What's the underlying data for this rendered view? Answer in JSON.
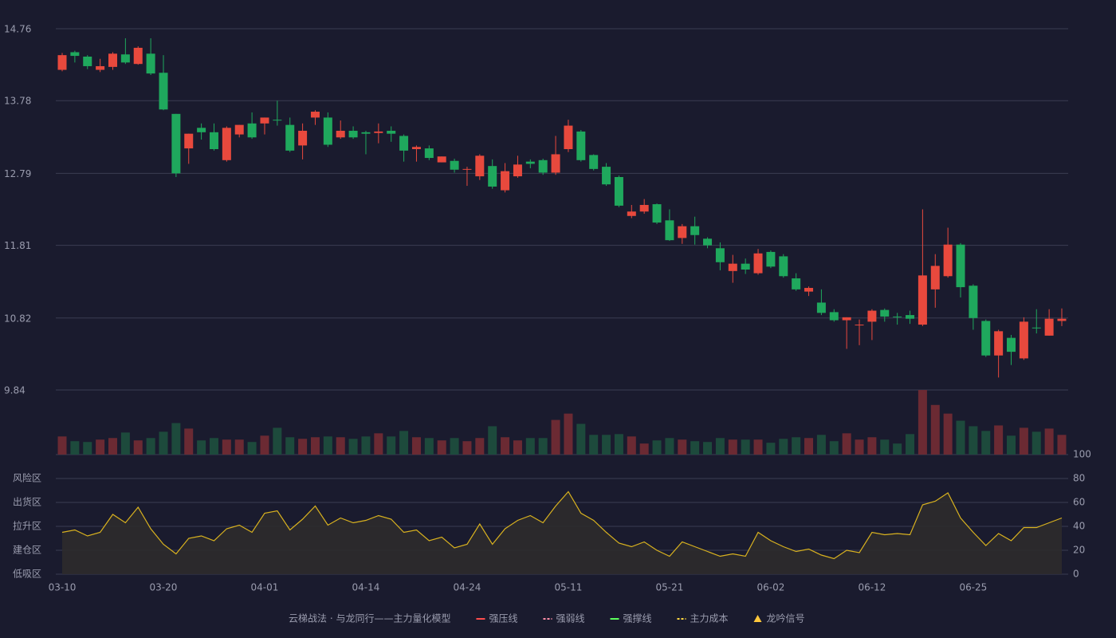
{
  "chart_data": {
    "type": "candlestick",
    "categories": [
      "03-10",
      null,
      null,
      null,
      null,
      null,
      null,
      null,
      "03-20",
      null,
      null,
      null,
      null,
      null,
      null,
      null,
      "04-01",
      null,
      null,
      null,
      null,
      null,
      null,
      null,
      "04-14",
      null,
      null,
      null,
      null,
      null,
      null,
      null,
      "04-24",
      null,
      null,
      null,
      null,
      null,
      null,
      null,
      "05-11",
      null,
      null,
      null,
      null,
      null,
      null,
      null,
      "05-21",
      null,
      null,
      null,
      null,
      null,
      null,
      null,
      "06-02",
      null,
      null,
      null,
      null,
      null,
      null,
      null,
      "06-12",
      null,
      null,
      null,
      null,
      null,
      null,
      null,
      "06-25",
      null,
      null,
      null,
      null,
      null,
      null,
      null
    ],
    "open": [
      14.2,
      14.44,
      14.38,
      14.2,
      14.24,
      14.41,
      14.28,
      14.42,
      14.16,
      13.6,
      13.13,
      13.41,
      13.35,
      12.97,
      13.32,
      13.47,
      13.47,
      13.52,
      13.45,
      13.17,
      13.55,
      13.55,
      13.28,
      13.37,
      13.35,
      13.34,
      13.37,
      13.3,
      13.12,
      13.13,
      12.94,
      12.96,
      12.84,
      12.75,
      12.89,
      12.56,
      12.75,
      12.95,
      12.97,
      12.8,
      13.12,
      13.36,
      13.04,
      12.88,
      12.74,
      12.21,
      12.27,
      12.37,
      12.15,
      11.91,
      12.07,
      11.9,
      11.77,
      11.46,
      11.56,
      11.43,
      11.72,
      11.66,
      11.36,
      11.18,
      11.03,
      10.9,
      10.79,
      10.72,
      10.77,
      10.93,
      10.84,
      10.86,
      10.73,
      11.21,
      11.39,
      11.82,
      11.26,
      10.78,
      10.31,
      10.55,
      10.27,
      10.69,
      10.58,
      10.78
    ],
    "high": [
      14.43,
      14.46,
      14.4,
      14.35,
      14.44,
      14.63,
      14.52,
      14.63,
      14.4,
      13.6,
      13.33,
      13.47,
      13.47,
      13.43,
      13.45,
      13.62,
      13.55,
      13.78,
      13.55,
      13.47,
      13.65,
      13.62,
      13.51,
      13.43,
      13.37,
      13.47,
      13.43,
      13.32,
      13.17,
      13.17,
      13.02,
      12.99,
      12.88,
      13.05,
      12.98,
      12.93,
      13.03,
      12.98,
      12.99,
      13.3,
      13.52,
      13.38,
      13.05,
      12.93,
      12.76,
      12.36,
      12.44,
      12.38,
      12.3,
      12.1,
      12.2,
      11.92,
      11.85,
      11.68,
      11.63,
      11.76,
      11.74,
      11.69,
      11.43,
      11.25,
      11.21,
      10.94,
      10.83,
      10.8,
      10.94,
      10.95,
      10.89,
      10.92,
      12.3,
      11.69,
      12.05,
      11.84,
      11.28,
      10.8,
      10.66,
      10.59,
      10.83,
      10.94,
      10.94,
      10.95
    ],
    "low": [
      14.18,
      14.3,
      14.21,
      14.17,
      14.2,
      14.28,
      14.27,
      14.13,
      13.65,
      12.74,
      12.92,
      13.25,
      13.1,
      12.95,
      13.28,
      13.26,
      13.32,
      13.44,
      13.08,
      12.98,
      13.45,
      13.15,
      13.26,
      13.26,
      13.05,
      13.2,
      13.22,
      12.95,
      12.95,
      12.97,
      12.94,
      12.8,
      12.62,
      12.7,
      12.58,
      12.53,
      12.73,
      12.86,
      12.77,
      12.77,
      13.08,
      12.95,
      12.83,
      12.62,
      12.33,
      12.18,
      12.24,
      12.1,
      11.87,
      11.83,
      11.82,
      11.77,
      11.47,
      11.3,
      11.42,
      11.41,
      11.5,
      11.37,
      11.19,
      11.12,
      10.86,
      10.77,
      10.4,
      10.45,
      10.52,
      10.77,
      10.73,
      10.74,
      10.71,
      10.96,
      11.37,
      11.1,
      10.66,
      10.29,
      10.01,
      10.18,
      10.25,
      10.61,
      10.58,
      10.71
    ],
    "close": [
      14.4,
      14.39,
      14.25,
      14.25,
      14.42,
      14.3,
      14.5,
      14.15,
      13.66,
      12.79,
      13.33,
      13.35,
      13.12,
      13.41,
      13.45,
      13.28,
      13.55,
      13.51,
      13.1,
      13.37,
      13.63,
      13.18,
      13.37,
      13.28,
      13.33,
      13.36,
      13.33,
      13.1,
      13.15,
      13.0,
      13.02,
      12.84,
      12.85,
      13.03,
      12.61,
      12.82,
      12.91,
      12.92,
      12.8,
      13.05,
      13.44,
      12.97,
      12.85,
      12.64,
      12.35,
      12.27,
      12.36,
      12.12,
      11.88,
      12.07,
      11.95,
      11.81,
      11.58,
      11.56,
      11.48,
      11.7,
      11.52,
      11.39,
      11.21,
      11.23,
      10.89,
      10.79,
      10.83,
      10.73,
      10.92,
      10.84,
      10.83,
      10.81,
      11.4,
      11.53,
      11.82,
      11.24,
      10.82,
      10.31,
      10.64,
      10.36,
      10.77,
      10.68,
      10.81,
      10.81
    ],
    "ylim": [
      9.84,
      14.76
    ],
    "yticks": [
      14.76,
      13.78,
      12.79,
      11.81,
      10.82,
      9.84
    ],
    "grid": true,
    "up_color": "#e8493d",
    "down_color": "#1fa85d",
    "volume": {
      "values": [
        23,
        17,
        16,
        19,
        21,
        28,
        18,
        21,
        29,
        40,
        33,
        18,
        21,
        19,
        19,
        16,
        24,
        34,
        22,
        20,
        22,
        23,
        22,
        20,
        23,
        27,
        23,
        30,
        22,
        21,
        18,
        21,
        17,
        21,
        36,
        22,
        18,
        21,
        21,
        44,
        52,
        39,
        25,
        25,
        26,
        23,
        14,
        18,
        21,
        19,
        17,
        16,
        21,
        19,
        19,
        19,
        15,
        20,
        22,
        21,
        25,
        17,
        27,
        19,
        22,
        19,
        14,
        26,
        82,
        63,
        52,
        43,
        36,
        30,
        37,
        24,
        34,
        29,
        33,
        25
      ],
      "ylim": [
        0,
        82
      ],
      "up_color": "#6b2a33",
      "down_color": "#1d4a3c"
    },
    "indicator": {
      "values": [
        35,
        37,
        32,
        35,
        50,
        43,
        56,
        38,
        25,
        17,
        30,
        32,
        28,
        38,
        41,
        35,
        51,
        53,
        37,
        46,
        57,
        41,
        47,
        43,
        45,
        49,
        46,
        35,
        37,
        28,
        31,
        22,
        25,
        42,
        25,
        38,
        45,
        49,
        43,
        57,
        69,
        51,
        45,
        35,
        26,
        23,
        27,
        20,
        15,
        27,
        23,
        19,
        15,
        17,
        15,
        35,
        28,
        23,
        19,
        21,
        16,
        13,
        20,
        18,
        35,
        33,
        34,
        33,
        58,
        61,
        68,
        47,
        35,
        24,
        34,
        28,
        39,
        39,
        43,
        47
      ],
      "color": "#d9b21f",
      "fill": "#2e2b2c",
      "ylim": [
        0,
        100
      ],
      "yticks": [
        0,
        20,
        40,
        60,
        80,
        100
      ],
      "tick_colors": [
        "#ff4040",
        "#ff6a4a",
        "#4a90e2",
        "#e040e0",
        "#f0a030",
        "#2ecc40"
      ],
      "zones": [
        {
          "label": "低吸区",
          "value": 0,
          "color": "#ff4a4a"
        },
        {
          "label": "建仓区",
          "value": 20,
          "color": "#ff6060"
        },
        {
          "label": "拉升区",
          "value": 40,
          "color": "#4a90e2"
        },
        {
          "label": "出货区",
          "value": 60,
          "color": "#e040e0"
        },
        {
          "label": "风险区",
          "value": 80,
          "color": "#f0a030"
        }
      ]
    },
    "legend_title": "云梯战法 · 与龙同行——主力量化模型",
    "legend_title_color": "#e8c060",
    "legend": [
      {
        "name": "强压线",
        "color": "#ff4d4d",
        "style": "solid"
      },
      {
        "name": "强弱线",
        "color": "#ff8fa8",
        "style": "dashed"
      },
      {
        "name": "强撑线",
        "color": "#5cff5c",
        "style": "solid"
      },
      {
        "name": "主力成本",
        "color": "#ffd740",
        "style": "dashed"
      },
      {
        "name": "龙吟信号",
        "color": "#ffc83c",
        "style": "triangle"
      }
    ]
  }
}
